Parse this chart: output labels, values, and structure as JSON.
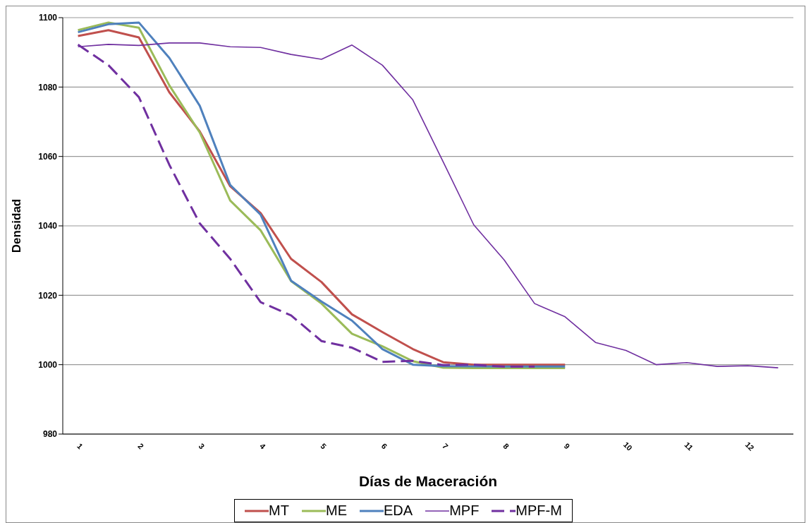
{
  "chart_data": {
    "type": "line",
    "xlabel": "Días de Maceración",
    "ylabel": "Densidad",
    "categories": [
      "1",
      null,
      "2",
      null,
      "3",
      null,
      "4",
      null,
      "5",
      null,
      "6",
      null,
      "7",
      null,
      "8",
      null,
      "9",
      null,
      "10",
      null,
      "11",
      null,
      "12",
      null
    ],
    "series": [
      {
        "name": "MT",
        "color": "#c0504d",
        "values": [
          1094.7,
          1096.4,
          1094.3,
          1078.5,
          1067.2,
          1051.4,
          1043.7,
          1030.5,
          1023.8,
          1014.5,
          1009.4,
          1004.5,
          1000.7,
          1000,
          1000,
          1000,
          1000,
          null,
          null,
          null,
          null,
          null,
          null,
          null
        ]
      },
      {
        "name": "ME",
        "color": "#9bbb59",
        "values": [
          1096.4,
          1098.6,
          1097.1,
          1080.5,
          1066.9,
          1047.3,
          1038.7,
          1024.1,
          1017.6,
          1008.9,
          1005.3,
          1001,
          999.1,
          999,
          999,
          999,
          999,
          null,
          null,
          null,
          null,
          null,
          null,
          null
        ]
      },
      {
        "name": "EDA",
        "color": "#4f81bd",
        "values": [
          1095.8,
          1098.1,
          1098.6,
          1088.4,
          1074.6,
          1051.8,
          1043.2,
          1024.2,
          1018.2,
          1012.7,
          1004.5,
          1000,
          999.6,
          999.5,
          999.5,
          999.5,
          999.5,
          null,
          null,
          null,
          null,
          null,
          null,
          null
        ]
      },
      {
        "name": "MPF",
        "color": "#7030a0",
        "values": [
          1091.6,
          1092.3,
          1092,
          1092.7,
          1092.7,
          1091.6,
          1091.4,
          1089.4,
          1088,
          1092.1,
          1086.3,
          1076.3,
          1058.4,
          1040.3,
          1030.2,
          1017.6,
          1013.8,
          1006.4,
          1004.1,
          1000,
          1000.6,
          999.5,
          999.7,
          999.1
        ]
      },
      {
        "name": "MPF-M",
        "color": "#7030a0",
        "line_style": "dashed",
        "values": [
          1092.2,
          1086.3,
          1077.1,
          1057.6,
          1040.7,
          1030.5,
          1018,
          1014.2,
          1006.8,
          1004.9,
          1000.8,
          1001.1,
          999.9,
          1000,
          999.4,
          999.4,
          null,
          null,
          null,
          null,
          null,
          null,
          null,
          null
        ]
      }
    ],
    "ylim": [
      980,
      1100
    ],
    "yticks": [
      980,
      1000,
      1020,
      1040,
      1060,
      1080,
      1100
    ],
    "grid": "y",
    "legend": "bottom",
    "marker": "none",
    "line_style": "solid"
  }
}
